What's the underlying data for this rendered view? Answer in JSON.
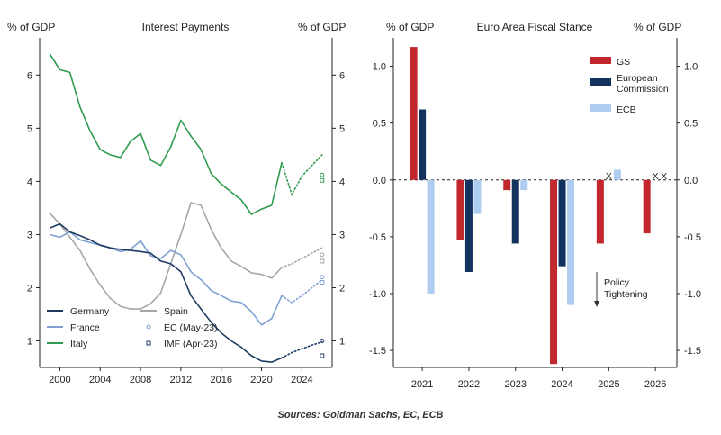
{
  "source": "Sources: Goldman Sachs, EC, ECB",
  "chart_data": [
    {
      "type": "line",
      "title": "Interest Payments",
      "ylabel_left": "% of GDP",
      "ylabel_right": "% of GDP",
      "xlim": [
        1998,
        2027
      ],
      "ylim": [
        0.5,
        6.7
      ],
      "x_ticks": [
        2000,
        2004,
        2008,
        2012,
        2016,
        2020,
        2024
      ],
      "y_ticks": [
        1,
        2,
        3,
        4,
        5,
        6
      ],
      "colors": {
        "Germany": "#1f3b63",
        "France": "#7fa1d1",
        "Italy": "#2e9b4e",
        "Spain": "#a6a6a6"
      },
      "series": [
        {
          "name": "Italy",
          "x": [
            1999,
            2000,
            2001,
            2002,
            2003,
            2004,
            2005,
            2006,
            2007,
            2008,
            2009,
            2010,
            2011,
            2012,
            2013,
            2014,
            2015,
            2016,
            2017,
            2018,
            2019,
            2020,
            2021,
            2022
          ],
          "values": [
            6.4,
            6.1,
            6.05,
            5.4,
            4.95,
            4.6,
            4.5,
            4.45,
            4.75,
            4.9,
            4.4,
            4.3,
            4.65,
            5.15,
            4.85,
            4.6,
            4.15,
            3.95,
            3.8,
            3.65,
            3.38,
            3.48,
            3.55,
            4.35
          ]
        },
        {
          "name": "Spain",
          "x": [
            1999,
            2000,
            2001,
            2002,
            2003,
            2004,
            2005,
            2006,
            2007,
            2008,
            2009,
            2010,
            2011,
            2012,
            2013,
            2014,
            2015,
            2016,
            2017,
            2018,
            2019,
            2020,
            2021,
            2022
          ],
          "values": [
            3.4,
            3.2,
            2.95,
            2.7,
            2.35,
            2.05,
            1.8,
            1.65,
            1.6,
            1.6,
            1.7,
            1.9,
            2.45,
            3.0,
            3.6,
            3.55,
            3.1,
            2.75,
            2.5,
            2.4,
            2.28,
            2.25,
            2.18,
            2.38
          ]
        },
        {
          "name": "France",
          "x": [
            1999,
            2000,
            2001,
            2002,
            2003,
            2004,
            2005,
            2006,
            2007,
            2008,
            2009,
            2010,
            2011,
            2012,
            2013,
            2014,
            2015,
            2016,
            2017,
            2018,
            2019,
            2020,
            2021,
            2022
          ],
          "values": [
            3.0,
            2.95,
            3.05,
            2.9,
            2.85,
            2.8,
            2.75,
            2.68,
            2.72,
            2.88,
            2.6,
            2.55,
            2.7,
            2.62,
            2.3,
            2.15,
            1.95,
            1.85,
            1.75,
            1.72,
            1.55,
            1.3,
            1.42,
            1.85
          ]
        },
        {
          "name": "Germany",
          "x": [
            1999,
            2000,
            2001,
            2002,
            2003,
            2004,
            2005,
            2006,
            2007,
            2008,
            2009,
            2010,
            2011,
            2012,
            2013,
            2014,
            2015,
            2016,
            2017,
            2018,
            2019,
            2020,
            2021,
            2022
          ],
          "values": [
            3.12,
            3.2,
            3.05,
            2.98,
            2.9,
            2.8,
            2.75,
            2.72,
            2.7,
            2.68,
            2.65,
            2.5,
            2.45,
            2.3,
            1.85,
            1.6,
            1.35,
            1.15,
            1.0,
            0.88,
            0.72,
            0.62,
            0.6,
            0.68
          ]
        }
      ],
      "projections": [
        {
          "name": "Italy",
          "x": [
            2022,
            2023,
            2024,
            2025,
            2026
          ],
          "values": [
            4.35,
            3.75,
            4.1,
            4.3,
            4.5
          ]
        },
        {
          "name": "Spain",
          "x": [
            2022,
            2023,
            2024,
            2025,
            2026
          ],
          "values": [
            2.38,
            2.45,
            2.55,
            2.65,
            2.75
          ]
        },
        {
          "name": "France",
          "x": [
            2022,
            2023,
            2024,
            2025,
            2026
          ],
          "values": [
            1.85,
            1.72,
            1.85,
            2.0,
            2.15
          ]
        },
        {
          "name": "Germany",
          "x": [
            2022,
            2023,
            2024,
            2025,
            2026
          ],
          "values": [
            0.68,
            0.78,
            0.85,
            0.92,
            0.98
          ]
        }
      ],
      "ec_markers": [
        {
          "series": "Italy",
          "x": 2026,
          "y": 4.12
        },
        {
          "series": "Spain",
          "x": 2026,
          "y": 2.62
        },
        {
          "series": "France",
          "x": 2026,
          "y": 2.2
        },
        {
          "series": "Germany",
          "x": 2026,
          "y": 1.0
        }
      ],
      "imf_markers": [
        {
          "series": "Italy",
          "x": 2026,
          "y": 4.02
        },
        {
          "series": "Spain",
          "x": 2026,
          "y": 2.5
        },
        {
          "series": "France",
          "x": 2026,
          "y": 2.1
        },
        {
          "series": "Germany",
          "x": 2026,
          "y": 0.72
        }
      ],
      "legend": {
        "placement": "bottom-left",
        "entries": [
          "Germany",
          "France",
          "Italy",
          "Spain",
          "EC (May-23)",
          "IMF (Apr-23)"
        ]
      }
    },
    {
      "type": "bar",
      "title": "Euro Area Fiscal Stance",
      "ylabel_left": "% of GDP",
      "ylabel_right": "% of GDP",
      "categories": [
        "2021",
        "2022",
        "2023",
        "2024",
        "2025",
        "2026"
      ],
      "ylim": [
        -1.65,
        1.25
      ],
      "y_ticks": [
        1.0,
        0.5,
        0.0,
        -0.5,
        -1.0,
        -1.5
      ],
      "y_tick_labels": [
        "1.0",
        "0.5",
        "0.0",
        "-0.5",
        "-1.0",
        "-1.5"
      ],
      "colors": {
        "GS": "#c1272d",
        "European Commission": "#14325e",
        "ECB": "#aecdf0"
      },
      "series": [
        {
          "name": "GS",
          "values": [
            1.17,
            -0.53,
            -0.09,
            -1.62,
            -0.56,
            -0.47
          ]
        },
        {
          "name": "European Commission",
          "values": [
            0.62,
            -0.81,
            -0.56,
            -0.76,
            null,
            null
          ]
        },
        {
          "name": "ECB",
          "values": [
            -1.0,
            -0.3,
            -0.09,
            -1.1,
            0.09,
            null
          ]
        }
      ],
      "x_markers": [
        {
          "category": "2025",
          "series": "European Commission",
          "label": "X"
        },
        {
          "category": "2026",
          "series": "European Commission",
          "label": "X"
        },
        {
          "category": "2026",
          "series": "ECB",
          "label": "X"
        }
      ],
      "annotation": {
        "lines": [
          "Policy",
          "Tightening"
        ],
        "arrow": "down"
      },
      "legend": {
        "placement": "top-right",
        "entries": [
          [
            "GS"
          ],
          [
            "European",
            "Commission"
          ],
          [
            "ECB"
          ]
        ]
      }
    }
  ]
}
